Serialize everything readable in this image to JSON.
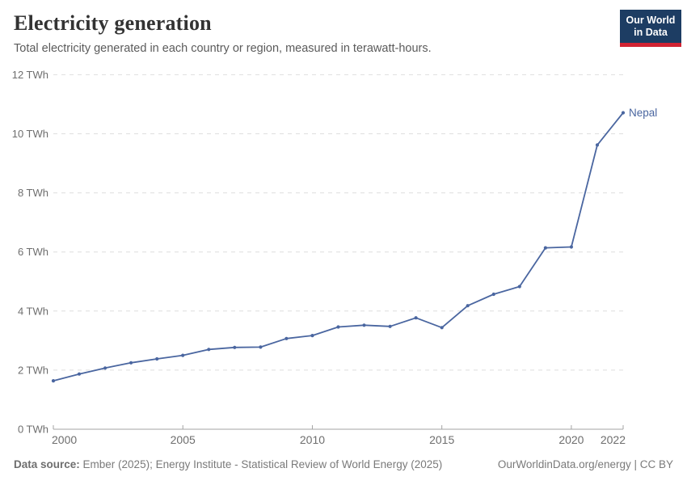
{
  "header": {
    "title": "Electricity generation",
    "subtitle": "Total electricity generated in each country or region, measured in terawatt-hours."
  },
  "logo": {
    "name": "our-world-in-data-logo",
    "line1": "Our World",
    "line2": "in Data",
    "bg_color": "#1d3d63",
    "bar_color": "#d22332"
  },
  "footer": {
    "source_label": "Data source:",
    "source_text": " Ember (2025); Energy Institute - Statistical Review of World Energy (2025)",
    "credit": "OurWorldinData.org/energy | CC BY"
  },
  "chart_data": {
    "type": "line",
    "title": "Electricity generation",
    "subtitle": "Total electricity generated in each country or region, measured in terawatt-hours.",
    "unit": "TWh",
    "xlim": [
      2000,
      2022
    ],
    "ylim": [
      0,
      12
    ],
    "grid": "dashed-horizontal",
    "legend_position": "end-of-line-label",
    "x": [
      2000,
      2001,
      2002,
      2003,
      2004,
      2005,
      2006,
      2007,
      2008,
      2009,
      2010,
      2011,
      2012,
      2013,
      2014,
      2015,
      2016,
      2017,
      2018,
      2019,
      2020,
      2021,
      2022
    ],
    "series": [
      {
        "name": "Nepal",
        "color": "#4a66a0",
        "values": [
          1.64,
          1.87,
          2.07,
          2.25,
          2.38,
          2.5,
          2.7,
          2.77,
          2.78,
          3.07,
          3.17,
          3.46,
          3.52,
          3.48,
          3.77,
          3.44,
          4.18,
          4.57,
          4.83,
          6.14,
          6.17,
          9.62,
          10.71
        ]
      }
    ],
    "x_ticks": [
      2000,
      2005,
      2010,
      2015,
      2020,
      2022
    ],
    "x_tick_labels": [
      "2000",
      "2005",
      "2010",
      "2015",
      "2020",
      "2022"
    ],
    "y_ticks": [
      0,
      2,
      4,
      6,
      8,
      10,
      12
    ],
    "y_tick_labels": [
      "0 TWh",
      "2 TWh",
      "4 TWh",
      "6 TWh",
      "8 TWh",
      "10 TWh",
      "12 TWh"
    ],
    "colors": {
      "grid": "#dedede",
      "axis": "#a3a3a3",
      "tick_text": "#6e6e6e"
    }
  }
}
